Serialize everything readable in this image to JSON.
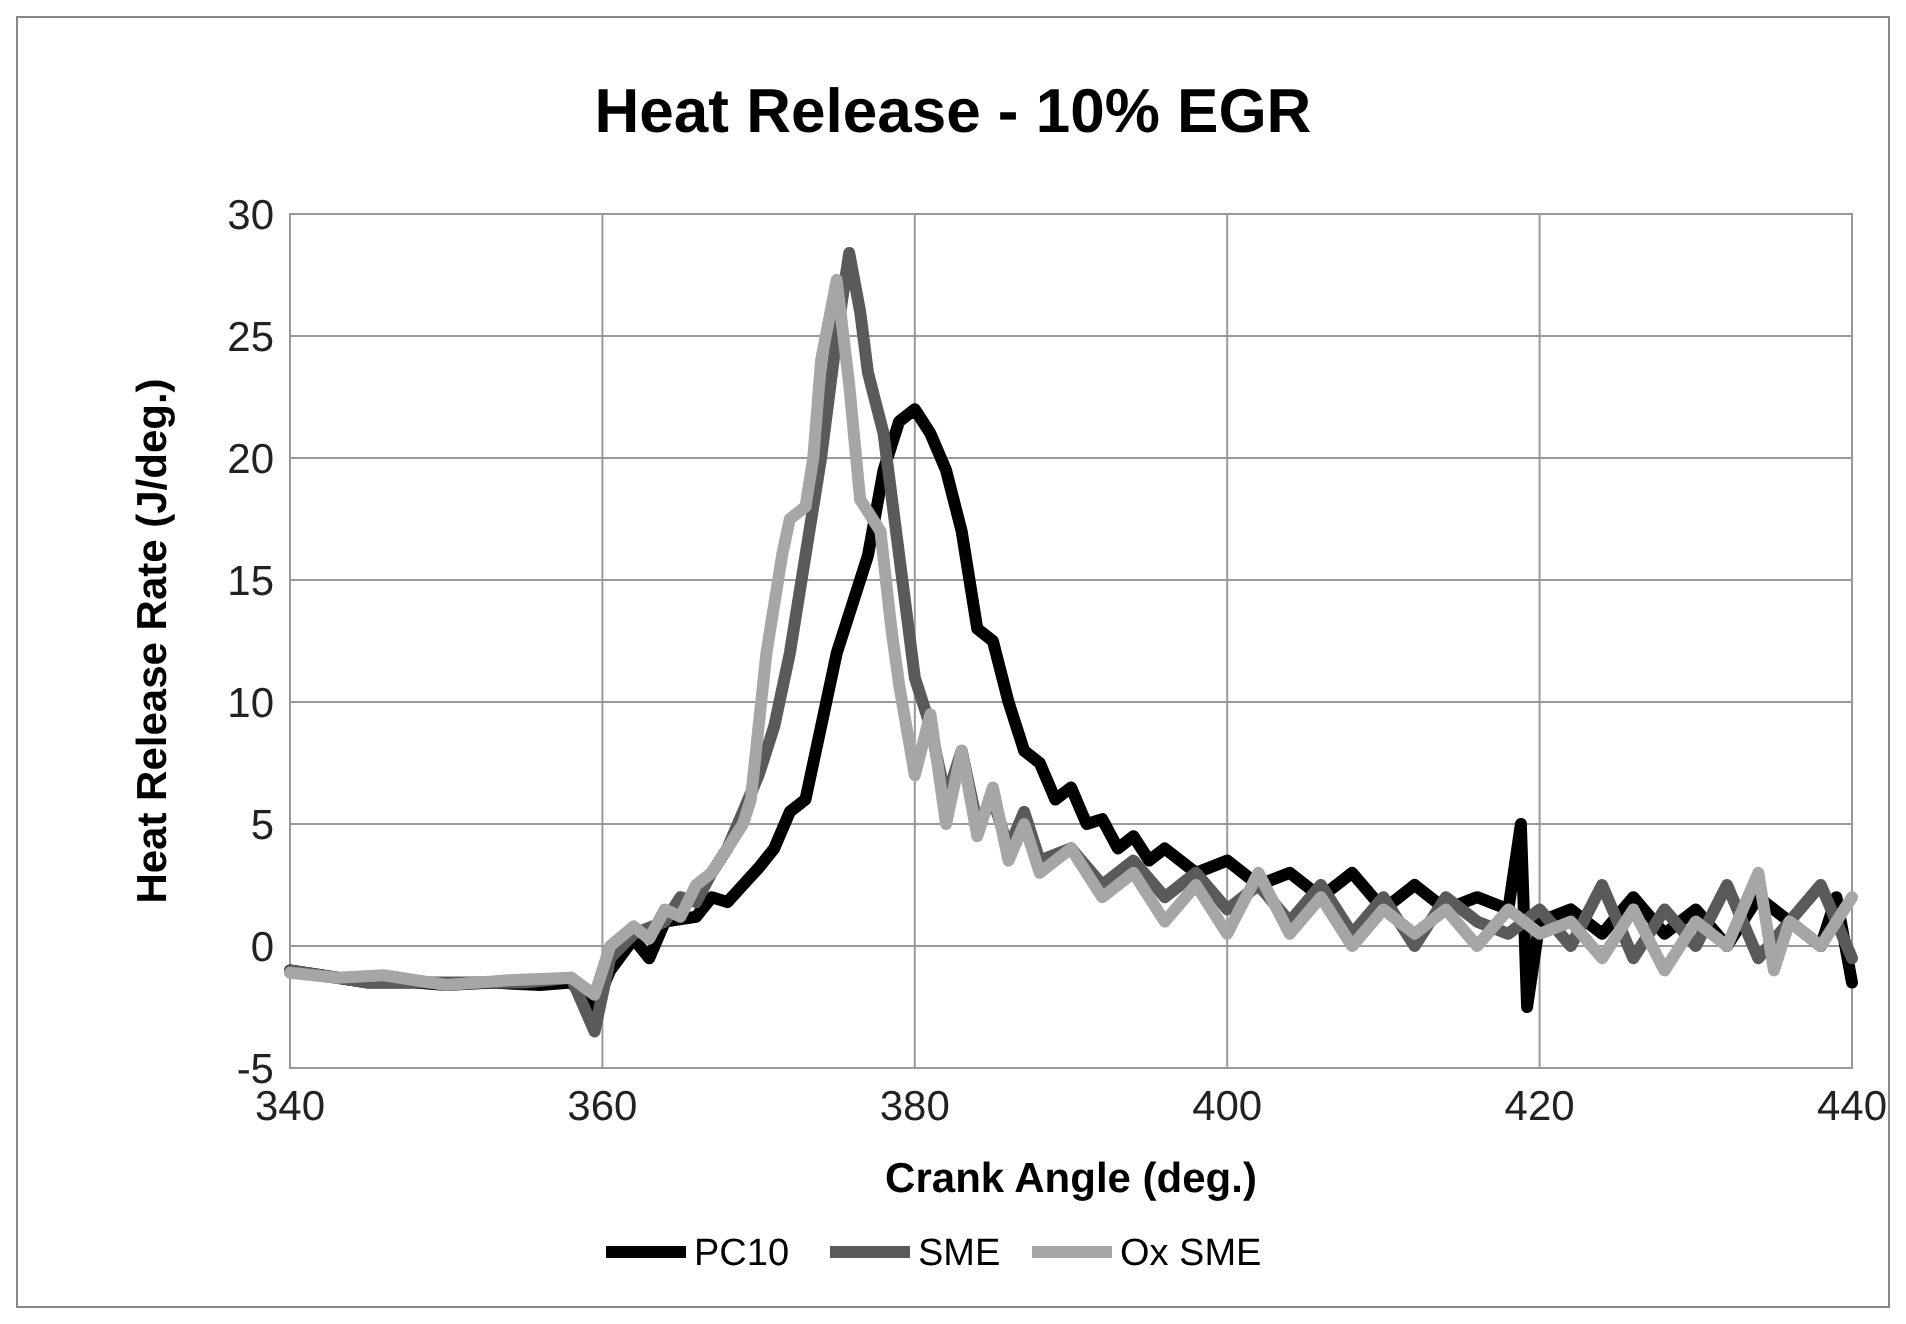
{
  "chart_data": {
    "type": "line",
    "title": "Heat Release - 10% EGR",
    "xlabel": "Crank Angle (deg.)",
    "ylabel": "Heat Release Rate (J/deg.)",
    "xlim": [
      340,
      440
    ],
    "xticks": [
      340,
      360,
      380,
      400,
      420,
      440
    ],
    "ylim": [
      -5,
      30
    ],
    "yticks": [
      -5,
      0,
      5,
      10,
      15,
      20,
      25,
      30
    ],
    "grid": true,
    "legend": "bottom",
    "marker": "none",
    "line_style": "solid",
    "series": [
      {
        "name": "PC10",
        "color": "#000000",
        "x": [
          340,
          342,
          345,
          348,
          350,
          353,
          356,
          358,
          359.5,
          360.5,
          362,
          363,
          364,
          366,
          367,
          368,
          369,
          370,
          371,
          372,
          373,
          374,
          375,
          376,
          377,
          378,
          379,
          380,
          381,
          382,
          383,
          384,
          385,
          386,
          387,
          388,
          389,
          390,
          391,
          392,
          393,
          394,
          395,
          396,
          398,
          400,
          402,
          404,
          406,
          408,
          410,
          412,
          414,
          416,
          418,
          418.8,
          419.2,
          420,
          422,
          424,
          426,
          428,
          430,
          432,
          434,
          436,
          438,
          439,
          440
        ],
        "values": [
          -1,
          -1.2,
          -1.5,
          -1.5,
          -1.6,
          -1.5,
          -1.6,
          -1.5,
          -2.5,
          -1,
          0.3,
          -0.5,
          1,
          1.2,
          2,
          1.8,
          2.5,
          3.2,
          4,
          5.5,
          6,
          9,
          12,
          14,
          16,
          19.5,
          21.5,
          22,
          21,
          19.5,
          17,
          13,
          12.5,
          10,
          8,
          7.5,
          6,
          6.5,
          5,
          5.2,
          4,
          4.5,
          3.5,
          4,
          3,
          3.5,
          2.5,
          3,
          2,
          3,
          1.5,
          2.5,
          1.5,
          2,
          1.5,
          5,
          -2.5,
          1,
          1.5,
          0.5,
          2,
          0.5,
          1.5,
          0,
          2,
          1,
          0,
          2,
          -1.5
        ]
      },
      {
        "name": "SME",
        "color": "#5a5a5a",
        "x": [
          340,
          345,
          350,
          355,
          358,
          359.5,
          360.5,
          362,
          364,
          365,
          366,
          367,
          368,
          369,
          370,
          371,
          372,
          373,
          374,
          375,
          375.8,
          376.5,
          377,
          378,
          379,
          380,
          381,
          382,
          383,
          384,
          385,
          386,
          387,
          388,
          390,
          392,
          394,
          396,
          398,
          400,
          402,
          404,
          406,
          408,
          410,
          412,
          414,
          416,
          418,
          420,
          422,
          424,
          426,
          428,
          430,
          432,
          434,
          436,
          438,
          440
        ],
        "values": [
          -1,
          -1.5,
          -1.5,
          -1.5,
          -1.3,
          -3.5,
          -0.5,
          0.5,
          1,
          2,
          1.8,
          3,
          4,
          5.5,
          7,
          9,
          12,
          16,
          20,
          25,
          28.4,
          26,
          23.5,
          21,
          16,
          11,
          9,
          6,
          8,
          5,
          6,
          4,
          5.5,
          3.5,
          4,
          2.5,
          3.5,
          2,
          3,
          1.5,
          2.5,
          1,
          2.5,
          0.5,
          2,
          0,
          2,
          1,
          0.5,
          1.5,
          0,
          2.5,
          -0.5,
          1.5,
          0,
          2.5,
          -0.5,
          1,
          2.5,
          -0.5
        ]
      },
      {
        "name": "Ox SME",
        "color": "#a6a6a6",
        "x": [
          340,
          343,
          346,
          350,
          354,
          358,
          359.5,
          360.5,
          362,
          363,
          364,
          365,
          366,
          367,
          368,
          369,
          369.5,
          370.5,
          371.5,
          372,
          373,
          373.5,
          374,
          375,
          375.8,
          376.5,
          377.8,
          378.5,
          379,
          380,
          381,
          382,
          383,
          384,
          385,
          386,
          387,
          388,
          390,
          392,
          394,
          396,
          398,
          400,
          402,
          404,
          406,
          408,
          410,
          412,
          414,
          416,
          418,
          420,
          422,
          424,
          426,
          428,
          430,
          432,
          434,
          435,
          436,
          438,
          440
        ],
        "values": [
          -1.1,
          -1.3,
          -1.2,
          -1.6,
          -1.4,
          -1.3,
          -2,
          0,
          0.8,
          0.3,
          1.5,
          1.2,
          2.5,
          3,
          4,
          5,
          6,
          12,
          16,
          17.5,
          18,
          20,
          24,
          27.3,
          23,
          18.3,
          17,
          13,
          10.7,
          7,
          9.5,
          5,
          8,
          4.5,
          6.5,
          3.5,
          5,
          3,
          4,
          2,
          3,
          1,
          2.5,
          0.5,
          3,
          0.5,
          2,
          0,
          1.5,
          0.5,
          1.5,
          0,
          1.5,
          0.5,
          1,
          -0.5,
          1.5,
          -1,
          1,
          0,
          3,
          -1,
          1,
          0,
          2
        ]
      }
    ]
  }
}
